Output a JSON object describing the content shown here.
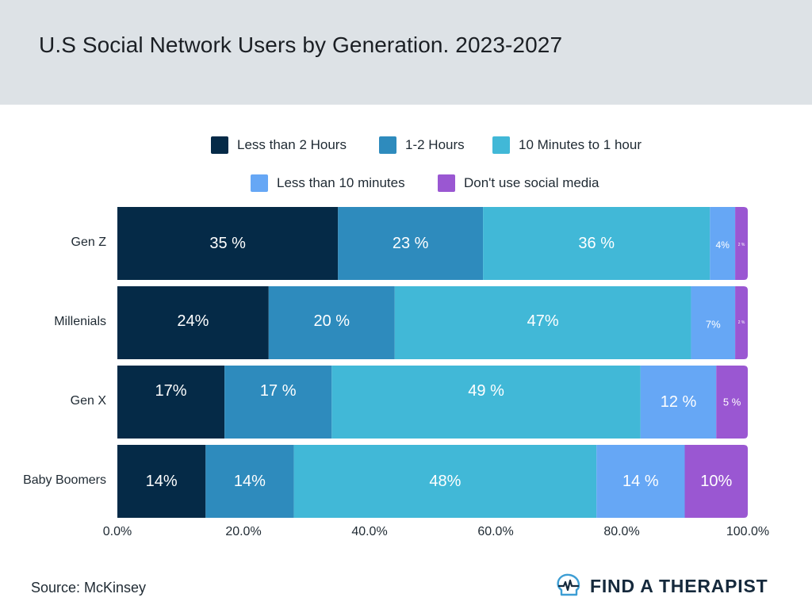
{
  "header": {
    "title": "U.S Social Network Users by Generation. 2023-2027"
  },
  "footer": {
    "source": "Source: McKinsey",
    "brand": "FIND A THERAPIST"
  },
  "icons": {
    "brand_logo": "head-heartbeat-icon"
  },
  "chart_data": {
    "type": "bar",
    "orientation": "horizontal",
    "stacked": true,
    "title": "U.S Social Network Users by Generation. 2023-2027",
    "categories": [
      "Gen Z",
      "Millenials",
      "Gen X",
      "Baby Boomers"
    ],
    "x_ticks": [
      "0.0%",
      "20.0%",
      "40.0%",
      "60.0%",
      "80.0%",
      "100.0%"
    ],
    "xlim": [
      0,
      100
    ],
    "legend_position": "top",
    "series": [
      {
        "name": "Less than 2 Hours",
        "color": "#052a47",
        "values": [
          35,
          24,
          17,
          14
        ],
        "labels": [
          "35 %",
          "24%",
          "17%",
          "14%"
        ]
      },
      {
        "name": "1-2 Hours",
        "color": "#2e8bbd",
        "values": [
          23,
          20,
          17,
          14
        ],
        "labels": [
          "23 %",
          "20 %",
          "17 %",
          "14%"
        ]
      },
      {
        "name": "10 Minutes to 1 hour",
        "color": "#41b8d7",
        "values": [
          36,
          47,
          49,
          48
        ],
        "labels": [
          "36 %",
          "47%",
          "49 %",
          "48%"
        ]
      },
      {
        "name": "Less than 10 minutes",
        "color": "#66a7f5",
        "values": [
          4,
          7,
          12,
          14
        ],
        "labels": [
          "4%",
          "7%",
          "12 %",
          "14 %"
        ]
      },
      {
        "name": "Don't use social media",
        "color": "#9a57d2",
        "values": [
          2,
          2,
          5,
          10
        ],
        "labels": [
          "2 %",
          "2 %",
          "5 %",
          "10%"
        ]
      }
    ]
  }
}
